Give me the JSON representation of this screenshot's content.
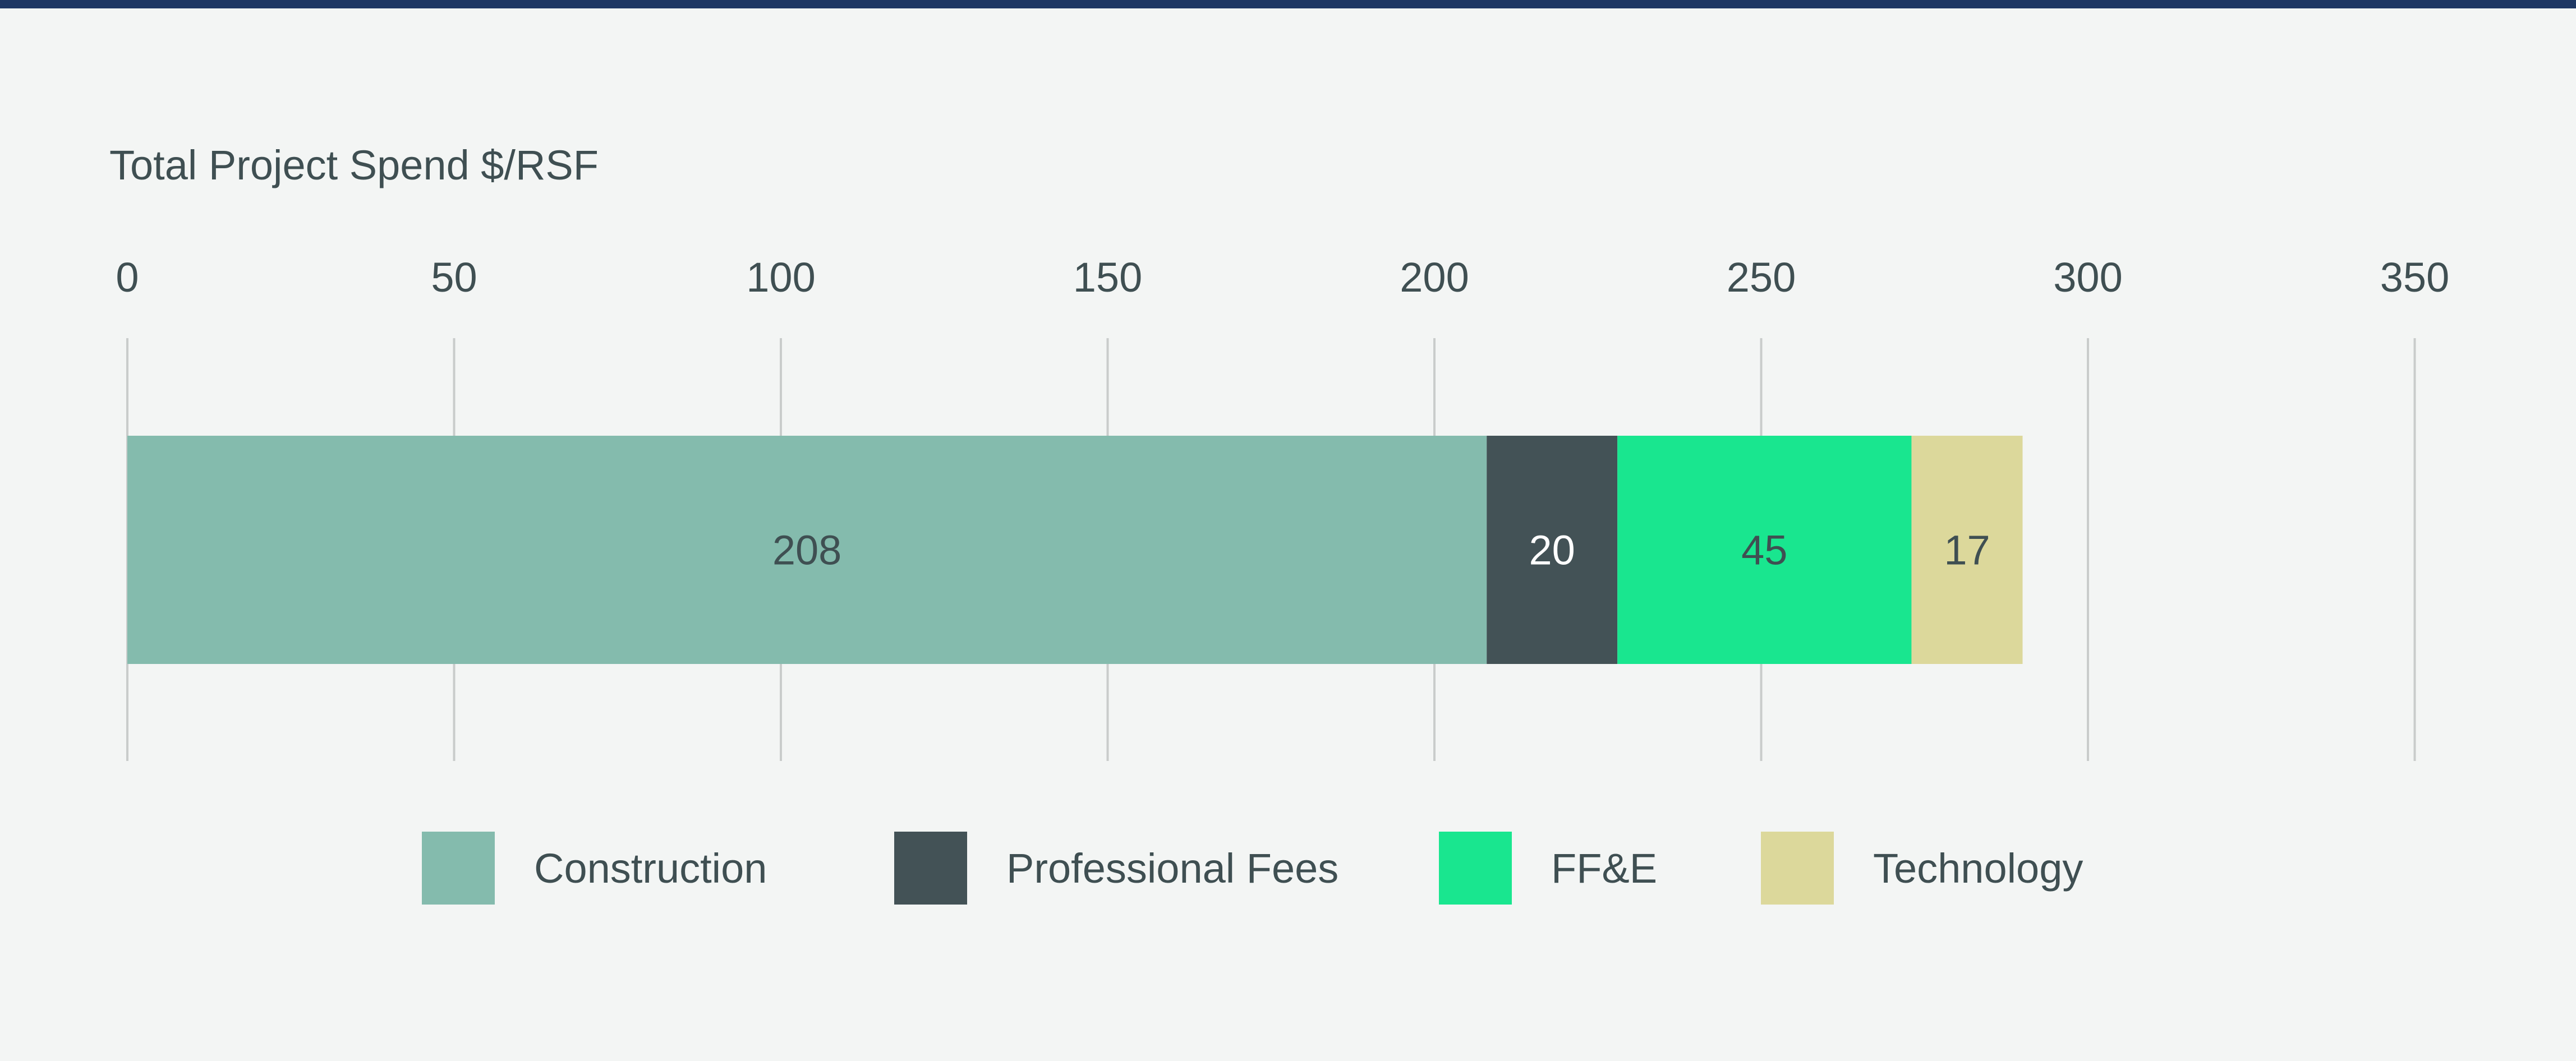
{
  "chart_data": {
    "type": "bar",
    "orientation": "horizontal",
    "stacked": true,
    "title": "Total Project Spend $/RSF",
    "xlim": [
      0,
      350
    ],
    "xticks": [
      0,
      50,
      100,
      150,
      200,
      250,
      300,
      350
    ],
    "grid": true,
    "legend_position": "bottom",
    "series": [
      {
        "name": "Construction",
        "value": 208,
        "color": "#84bbad",
        "label_color": "#3f4f52"
      },
      {
        "name": "Professional Fees",
        "value": 20,
        "color": "#435256",
        "label_color": "#ffffff"
      },
      {
        "name": "FF&E",
        "value": 45,
        "color": "#19e68f",
        "label_color": "#3f4f52"
      },
      {
        "name": "Technology",
        "value": 17,
        "color": "#dcd89b",
        "label_color": "#3f4f52"
      }
    ]
  },
  "colors": {
    "background": "#f3f5f4",
    "top_rule": "#1f3864",
    "gridline": "#c9cccb",
    "text": "#3f4f52"
  }
}
